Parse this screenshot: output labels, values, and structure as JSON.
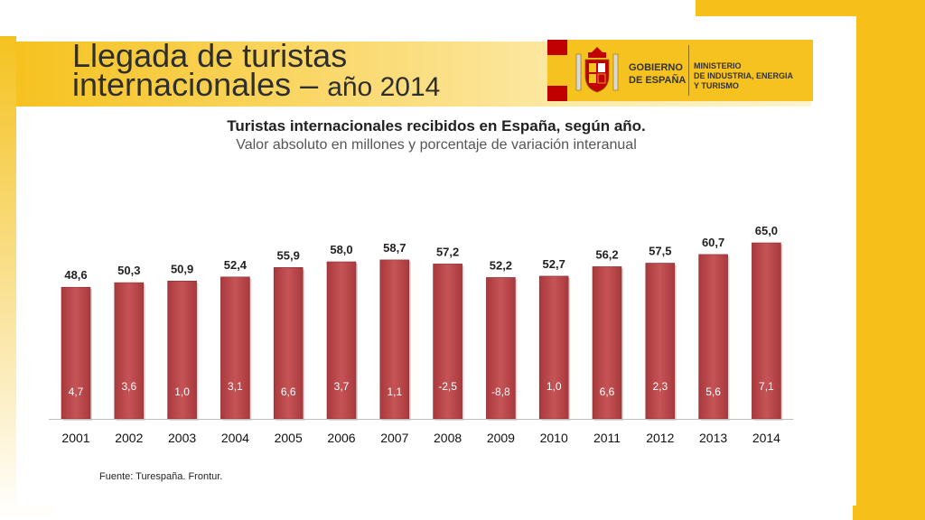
{
  "slide": {
    "title_line1": "Llegada de turistas",
    "title_line2_main": "internacionales – ",
    "title_line2_year": "año 2014"
  },
  "logo": {
    "gov_line1": "GOBIERNO",
    "gov_line2": "DE ESPAÑA",
    "min_line1": "MINISTERIO",
    "min_line2": "DE INDUSTRIA, ENERGIA",
    "min_line3": "Y TURISMO"
  },
  "colors": {
    "bar": "#a8393c",
    "bar_light": "#c65457",
    "accent": "#f6c21f"
  },
  "chart_data": {
    "type": "bar",
    "title": "Turistas internacionales recibidos en España, según año.",
    "subtitle": "Valor absoluto en millones y porcentaje de variación interanual",
    "categories": [
      "2001",
      "2002",
      "2003",
      "2004",
      "2005",
      "2006",
      "2007",
      "2008",
      "2009",
      "2010",
      "2011",
      "2012",
      "2013",
      "2014"
    ],
    "values": [
      48.6,
      50.3,
      50.9,
      52.4,
      55.9,
      58.0,
      58.7,
      57.2,
      52.2,
      52.7,
      56.2,
      57.5,
      60.7,
      65.0
    ],
    "value_labels": [
      "48,6",
      "50,3",
      "50,9",
      "52,4",
      "55,9",
      "58,0",
      "58,7",
      "57,2",
      "52,2",
      "52,7",
      "56,2",
      "57,5",
      "60,7",
      "65,0"
    ],
    "variation_labels": [
      "4,7",
      "3,6",
      "1,0",
      "3,1",
      "6,6",
      "3,7",
      "1,1",
      "-2,5",
      "-8,8",
      "1,0",
      "6,6",
      "2,3",
      "5,6",
      "7,1"
    ],
    "ylim": [
      0,
      70
    ],
    "grid": false,
    "source": "Fuente: Turespaña. Frontur."
  }
}
